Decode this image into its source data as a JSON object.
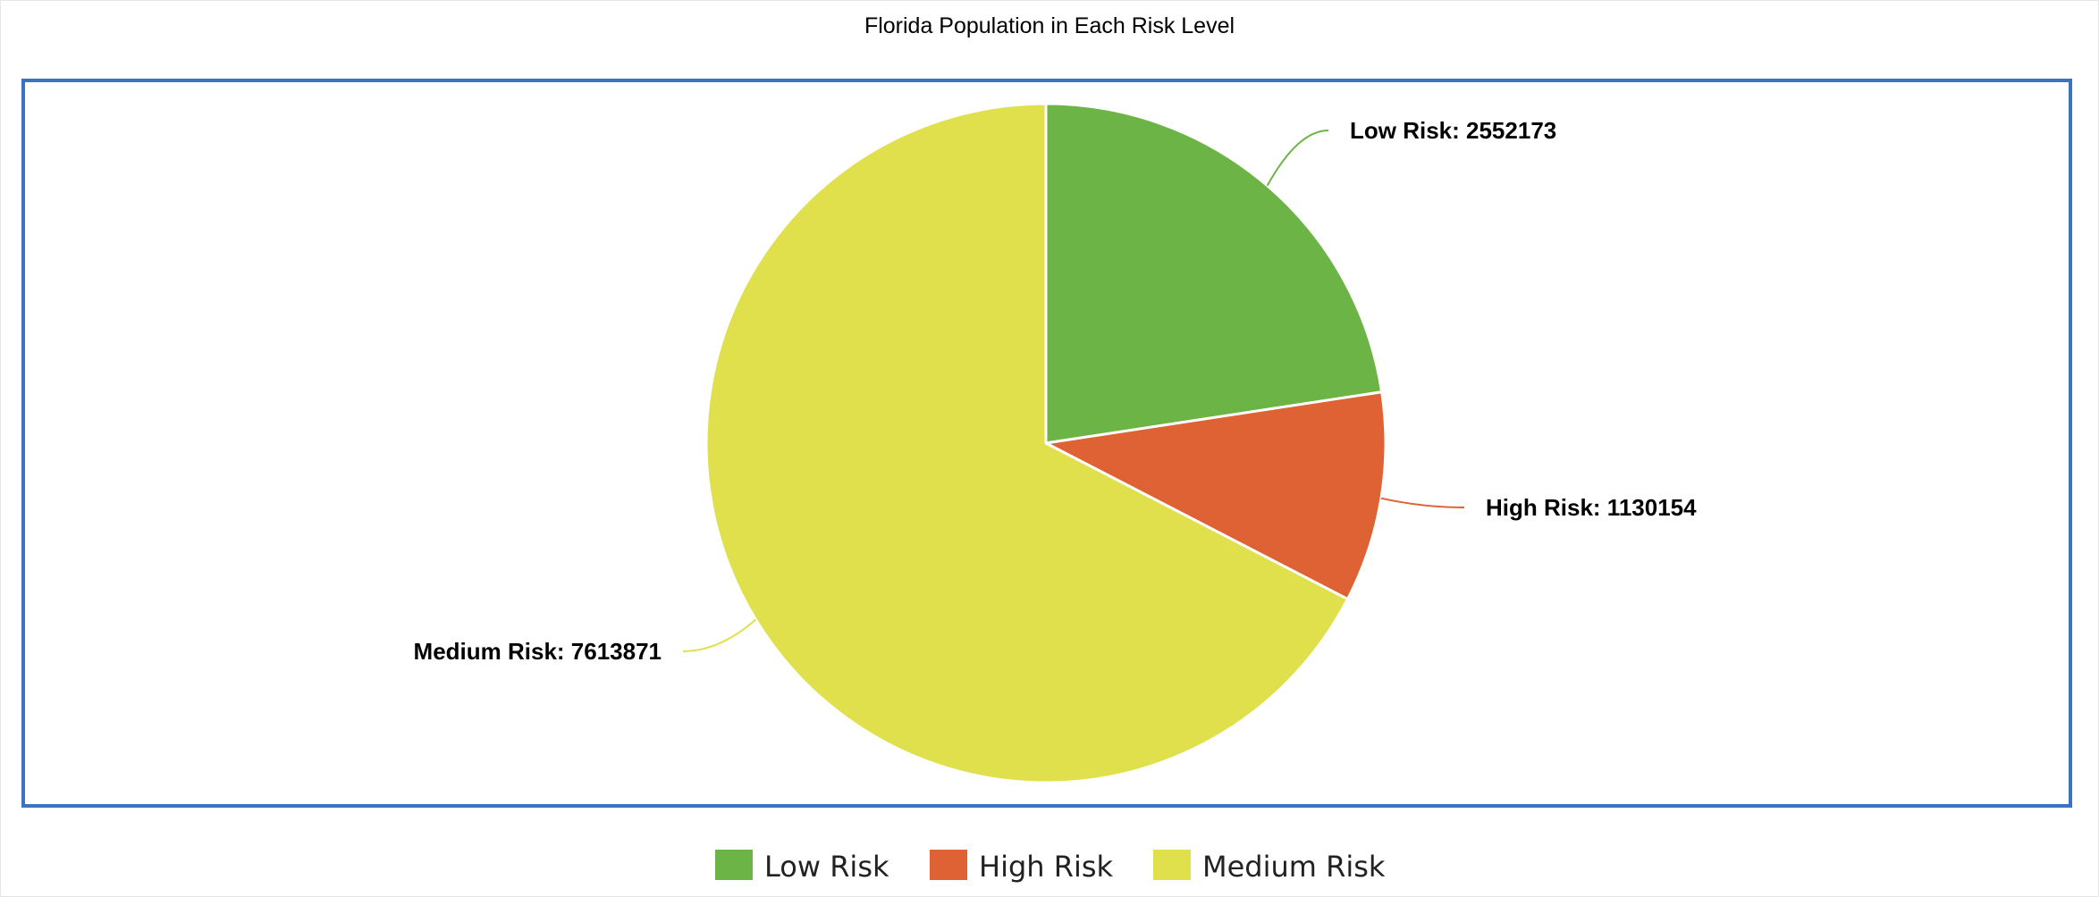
{
  "chart_data": {
    "type": "pie",
    "title": "Florida Population in Each Risk Level",
    "slices": [
      {
        "name": "Low Risk",
        "value": 2552173,
        "color": "#6db446",
        "label": "Low Risk: 2552173"
      },
      {
        "name": "High Risk",
        "value": 1130154,
        "color": "#de6233",
        "label": "High Risk: 1130154"
      },
      {
        "name": "Medium Risk",
        "value": 7613871,
        "color": "#dfe04c",
        "label": "Medium Risk: 7613871"
      }
    ],
    "legend": {
      "position": "bottom",
      "items": [
        "Low Risk",
        "High Risk",
        "Medium Risk"
      ]
    },
    "frame_color": "#3b73c2"
  }
}
